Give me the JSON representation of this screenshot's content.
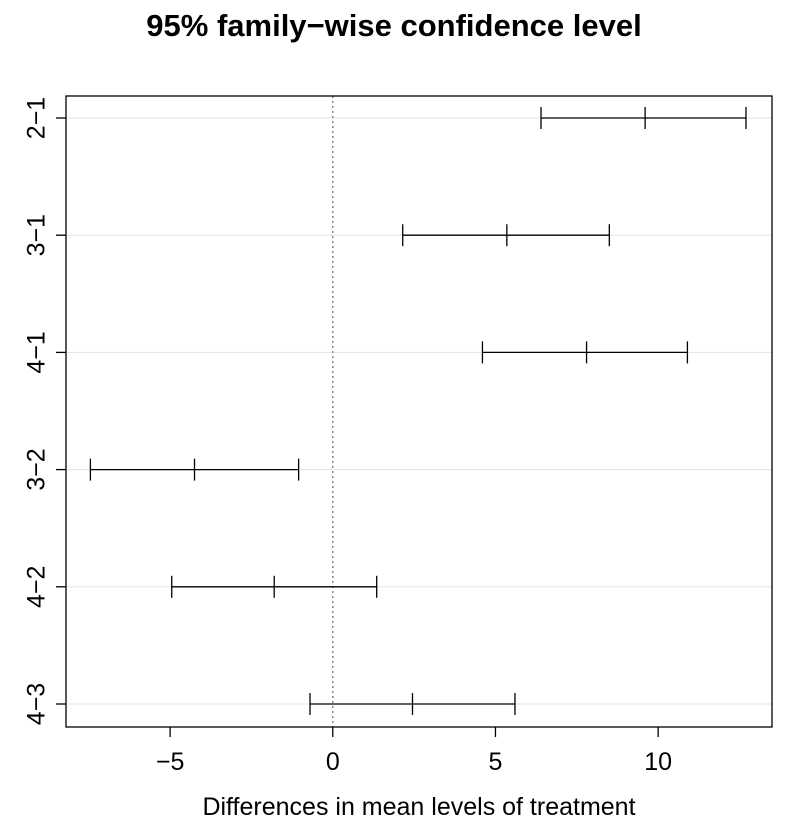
{
  "chart_data": {
    "type": "errorbar",
    "title": "95% family−wise confidence level",
    "xlabel": "Differences in mean levels of treatment",
    "ylabel": "",
    "xlim": [
      -8.2,
      13.5
    ],
    "x_ticks": [
      -5,
      0,
      5,
      10
    ],
    "x_tick_labels": [
      "−5",
      "0",
      "5",
      "10"
    ],
    "reference_line": 0,
    "grid": "horizontal",
    "comparisons": [
      {
        "label": "2−1",
        "lower": 6.4,
        "estimate": 9.6,
        "upper": 12.7
      },
      {
        "label": "3−1",
        "lower": 2.15,
        "estimate": 5.35,
        "upper": 8.5
      },
      {
        "label": "4−1",
        "lower": 4.6,
        "estimate": 7.8,
        "upper": 10.9
      },
      {
        "label": "3−2",
        "lower": -7.45,
        "estimate": -4.25,
        "upper": -1.05
      },
      {
        "label": "4−2",
        "lower": -4.95,
        "estimate": -1.8,
        "upper": 1.35
      },
      {
        "label": "4−3",
        "lower": -0.7,
        "estimate": 2.45,
        "upper": 5.6
      }
    ]
  }
}
